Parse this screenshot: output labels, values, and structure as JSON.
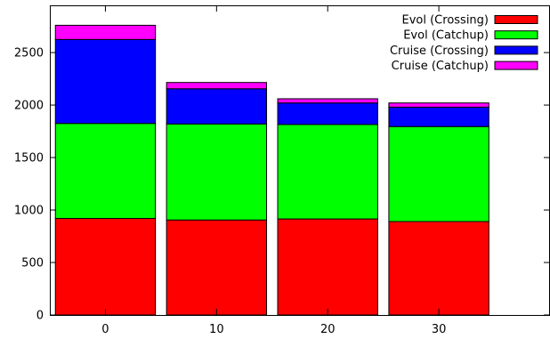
{
  "chart_data": {
    "type": "bar",
    "stacked": true,
    "categories": [
      "0",
      "10",
      "20",
      "30"
    ],
    "series": [
      {
        "name": "Evol (Crossing)",
        "color": "#ff0000",
        "values": [
          920,
          905,
          915,
          890
        ]
      },
      {
        "name": "Evol (Catchup)",
        "color": "#00ff00",
        "values": [
          905,
          915,
          900,
          905
        ]
      },
      {
        "name": "Cruise (Crossing)",
        "color": "#0000ff",
        "values": [
          800,
          335,
          205,
          185
        ]
      },
      {
        "name": "Cruise (Catchup)",
        "color": "#ff00ff",
        "values": [
          135,
          60,
          40,
          40
        ]
      }
    ],
    "ylim": [
      0,
      2950
    ],
    "yticks": [
      0,
      500,
      1000,
      1500,
      2000,
      2500
    ],
    "xlim": [
      -5,
      40
    ],
    "bar_width": 9,
    "legend_position": "top-right",
    "grid": false
  }
}
